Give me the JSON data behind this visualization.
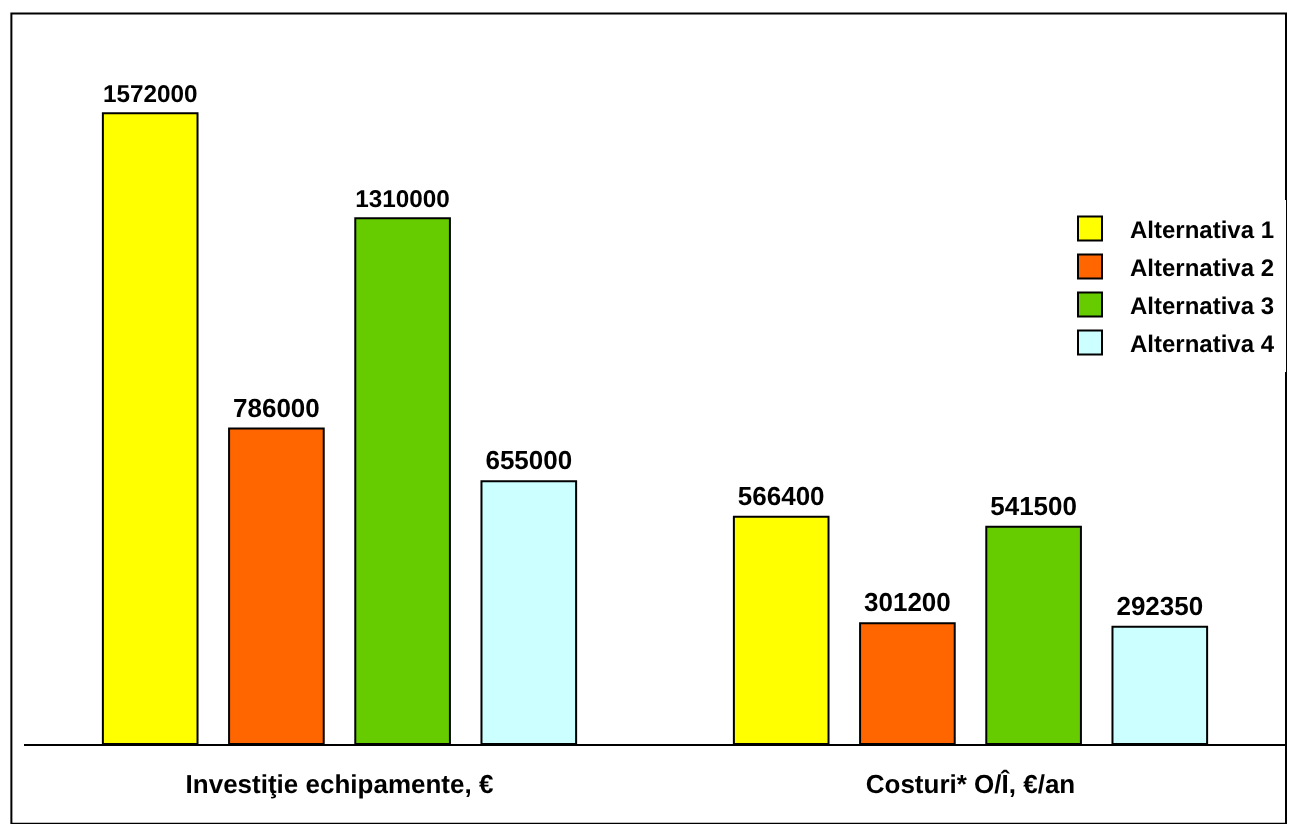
{
  "chart_data": {
    "type": "bar",
    "categories": [
      "Investiţie echipamente, €",
      "Costuri* O/Î, €/an"
    ],
    "series": [
      {
        "name": "Alternativa 1",
        "color": "#ffff00",
        "values": [
          1572000,
          566400
        ]
      },
      {
        "name": "Alternativa 2",
        "color": "#ff6600",
        "values": [
          786000,
          301200
        ]
      },
      {
        "name": "Alternativa 3",
        "color": "#66cc00",
        "values": [
          1310000,
          541500
        ]
      },
      {
        "name": "Alternativa 4",
        "color": "#ccffff",
        "values": [
          655000,
          292350
        ]
      }
    ],
    "data_labels": true,
    "legend": "right",
    "tick_labels": "x"
  }
}
